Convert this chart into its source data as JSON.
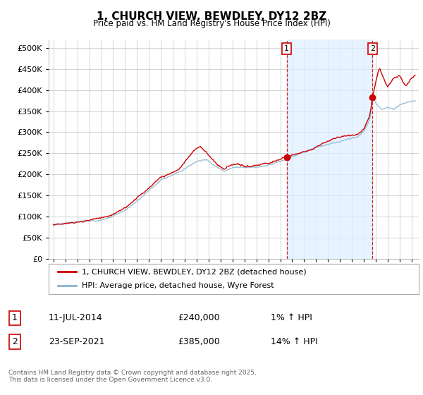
{
  "title": "1, CHURCH VIEW, BEWDLEY, DY12 2BZ",
  "subtitle": "Price paid vs. HM Land Registry's House Price Index (HPI)",
  "legend_label_red": "1, CHURCH VIEW, BEWDLEY, DY12 2BZ (detached house)",
  "legend_label_blue": "HPI: Average price, detached house, Wyre Forest",
  "annotation1_date": "11-JUL-2014",
  "annotation1_price": "£240,000",
  "annotation1_hpi": "1% ↑ HPI",
  "annotation2_date": "23-SEP-2021",
  "annotation2_price": "£385,000",
  "annotation2_hpi": "14% ↑ HPI",
  "footer": "Contains HM Land Registry data © Crown copyright and database right 2025.\nThis data is licensed under the Open Government Licence v3.0.",
  "ylim": [
    0,
    520000
  ],
  "yticks": [
    0,
    50000,
    100000,
    150000,
    200000,
    250000,
    300000,
    350000,
    400000,
    450000,
    500000
  ],
  "background_color": "#ffffff",
  "plot_bg_color": "#ffffff",
  "grid_color": "#cccccc",
  "red_color": "#cc0000",
  "blue_color": "#8ab4d4",
  "shade_color": "#ddeeff",
  "vline_color": "#cc0000",
  "marker1_x_year": 2014.53,
  "marker2_x_year": 2021.73,
  "xmin": 1994.6,
  "xmax": 2025.6
}
